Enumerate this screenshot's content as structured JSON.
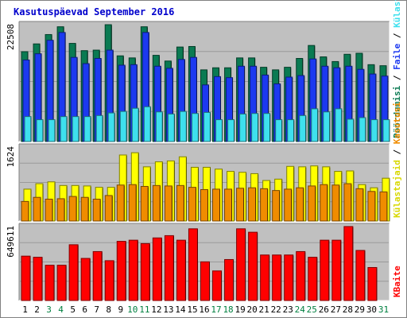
{
  "chart_data": {
    "type": "bar",
    "title": "Kasutuspäevad September 2016",
    "title_color": "#0000cc",
    "background": "#c0c0c0",
    "outer_background": "#ffffff",
    "categories": [
      "1",
      "2",
      "3",
      "4",
      "5",
      "6",
      "7",
      "8",
      "9",
      "10",
      "11",
      "12",
      "13",
      "14",
      "15",
      "16",
      "17",
      "18",
      "19",
      "20",
      "21",
      "22",
      "23",
      "24",
      "25",
      "26",
      "27",
      "28",
      "29",
      "30",
      "31"
    ],
    "weekend_day_color": "#008040",
    "weekday_color": "#000000",
    "weekend_days": [
      "3",
      "4",
      "10",
      "11",
      "17",
      "18",
      "24",
      "25",
      "31"
    ],
    "panels": [
      {
        "id": "top",
        "ymax_label": "22508",
        "ymax": 22508,
        "series": [
          {
            "name": "Pöördumisi",
            "color": "#0a7a52",
            "values": [
              17300,
              18800,
              20600,
              22100,
              18900,
              17500,
              17600,
              22500,
              16500,
              16100,
              22100,
              16600,
              15500,
              18200,
              18300,
              13800,
              14200,
              14200,
              16100,
              16100,
              14300,
              13800,
              14300,
              16000,
              18500,
              16300,
              15400,
              16800,
              17000,
              14800,
              14600
            ]
          },
          {
            "name": "Faile",
            "color": "#1c39f0",
            "values": [
              15700,
              16900,
              19500,
              21000,
              16200,
              15000,
              16000,
              17600,
              14700,
              14800,
              21000,
              14500,
              14100,
              15800,
              16200,
              10900,
              12500,
              12300,
              14500,
              14500,
              12800,
              11100,
              12400,
              12700,
              15900,
              14500,
              14200,
              14500,
              13900,
              13000,
              12600
            ]
          },
          {
            "name": "Külastajaid",
            "color": "#3ee0ee",
            "values": [
              4800,
              4200,
              4200,
              4800,
              4800,
              4800,
              5000,
              5500,
              5800,
              6400,
              6700,
              5700,
              5300,
              5800,
              5400,
              5600,
              4200,
              4200,
              5300,
              5400,
              5400,
              4200,
              4200,
              5000,
              6300,
              5700,
              6300,
              4300,
              4600,
              4200,
              4200
            ]
          }
        ]
      },
      {
        "id": "middle",
        "ymax_label": "1624",
        "ymax": 1624,
        "series": [
          {
            "name": "Külastajaid",
            "color": "#ffff00",
            "values": [
              700,
              820,
              860,
              780,
              780,
              770,
              740,
              740,
              1450,
              1500,
              1190,
              1300,
              1320,
              1410,
              1180,
              1180,
              1140,
              1090,
              1070,
              1040,
              890,
              920,
              1200,
              1190,
              1210,
              1190,
              1090,
              1100,
              800,
              730,
              940
            ]
          },
          {
            "name": "Kasutusi",
            "color": "#f08c00",
            "values": [
              430,
              520,
              480,
              490,
              540,
              520,
              480,
              560,
              790,
              800,
              760,
              780,
              770,
              780,
              740,
              690,
              700,
              700,
              720,
              730,
              710,
              670,
              700,
              730,
              770,
              800,
              790,
              820,
              710,
              650,
              640
            ]
          }
        ]
      },
      {
        "id": "bottom",
        "ymax_label": "649611",
        "ymax": 649611,
        "series": [
          {
            "name": "KBaite",
            "color": "#ff0000",
            "values": [
              390000,
              380000,
              310000,
              310000,
              490000,
              370000,
              430000,
              350000,
              520000,
              530000,
              500000,
              550000,
              570000,
              530000,
              630000,
              340000,
              260000,
              360000,
              630000,
              600000,
              400000,
              400000,
              400000,
              430000,
              380000,
              530000,
              530000,
              650000,
              440000,
              290000,
              0
            ]
          }
        ]
      }
    ],
    "right_legend": {
      "top": [
        {
          "text": "Pöördumisi",
          "color": "#0a7a52"
        },
        {
          "text": " / ",
          "color": "#000000"
        },
        {
          "text": "Faile",
          "color": "#1c39f0"
        },
        {
          "text": " / ",
          "color": "#000000"
        },
        {
          "text": "Külastajaid",
          "color": "#3ee0ee"
        }
      ],
      "middle": [
        {
          "text": "Külastajaid",
          "color": "#d8d800"
        },
        {
          "text": " / ",
          "color": "#000000"
        },
        {
          "text": "Kasutusi",
          "color": "#f08c00"
        }
      ],
      "bottom": [
        {
          "text": "KBaite",
          "color": "#ff0000"
        }
      ]
    }
  }
}
